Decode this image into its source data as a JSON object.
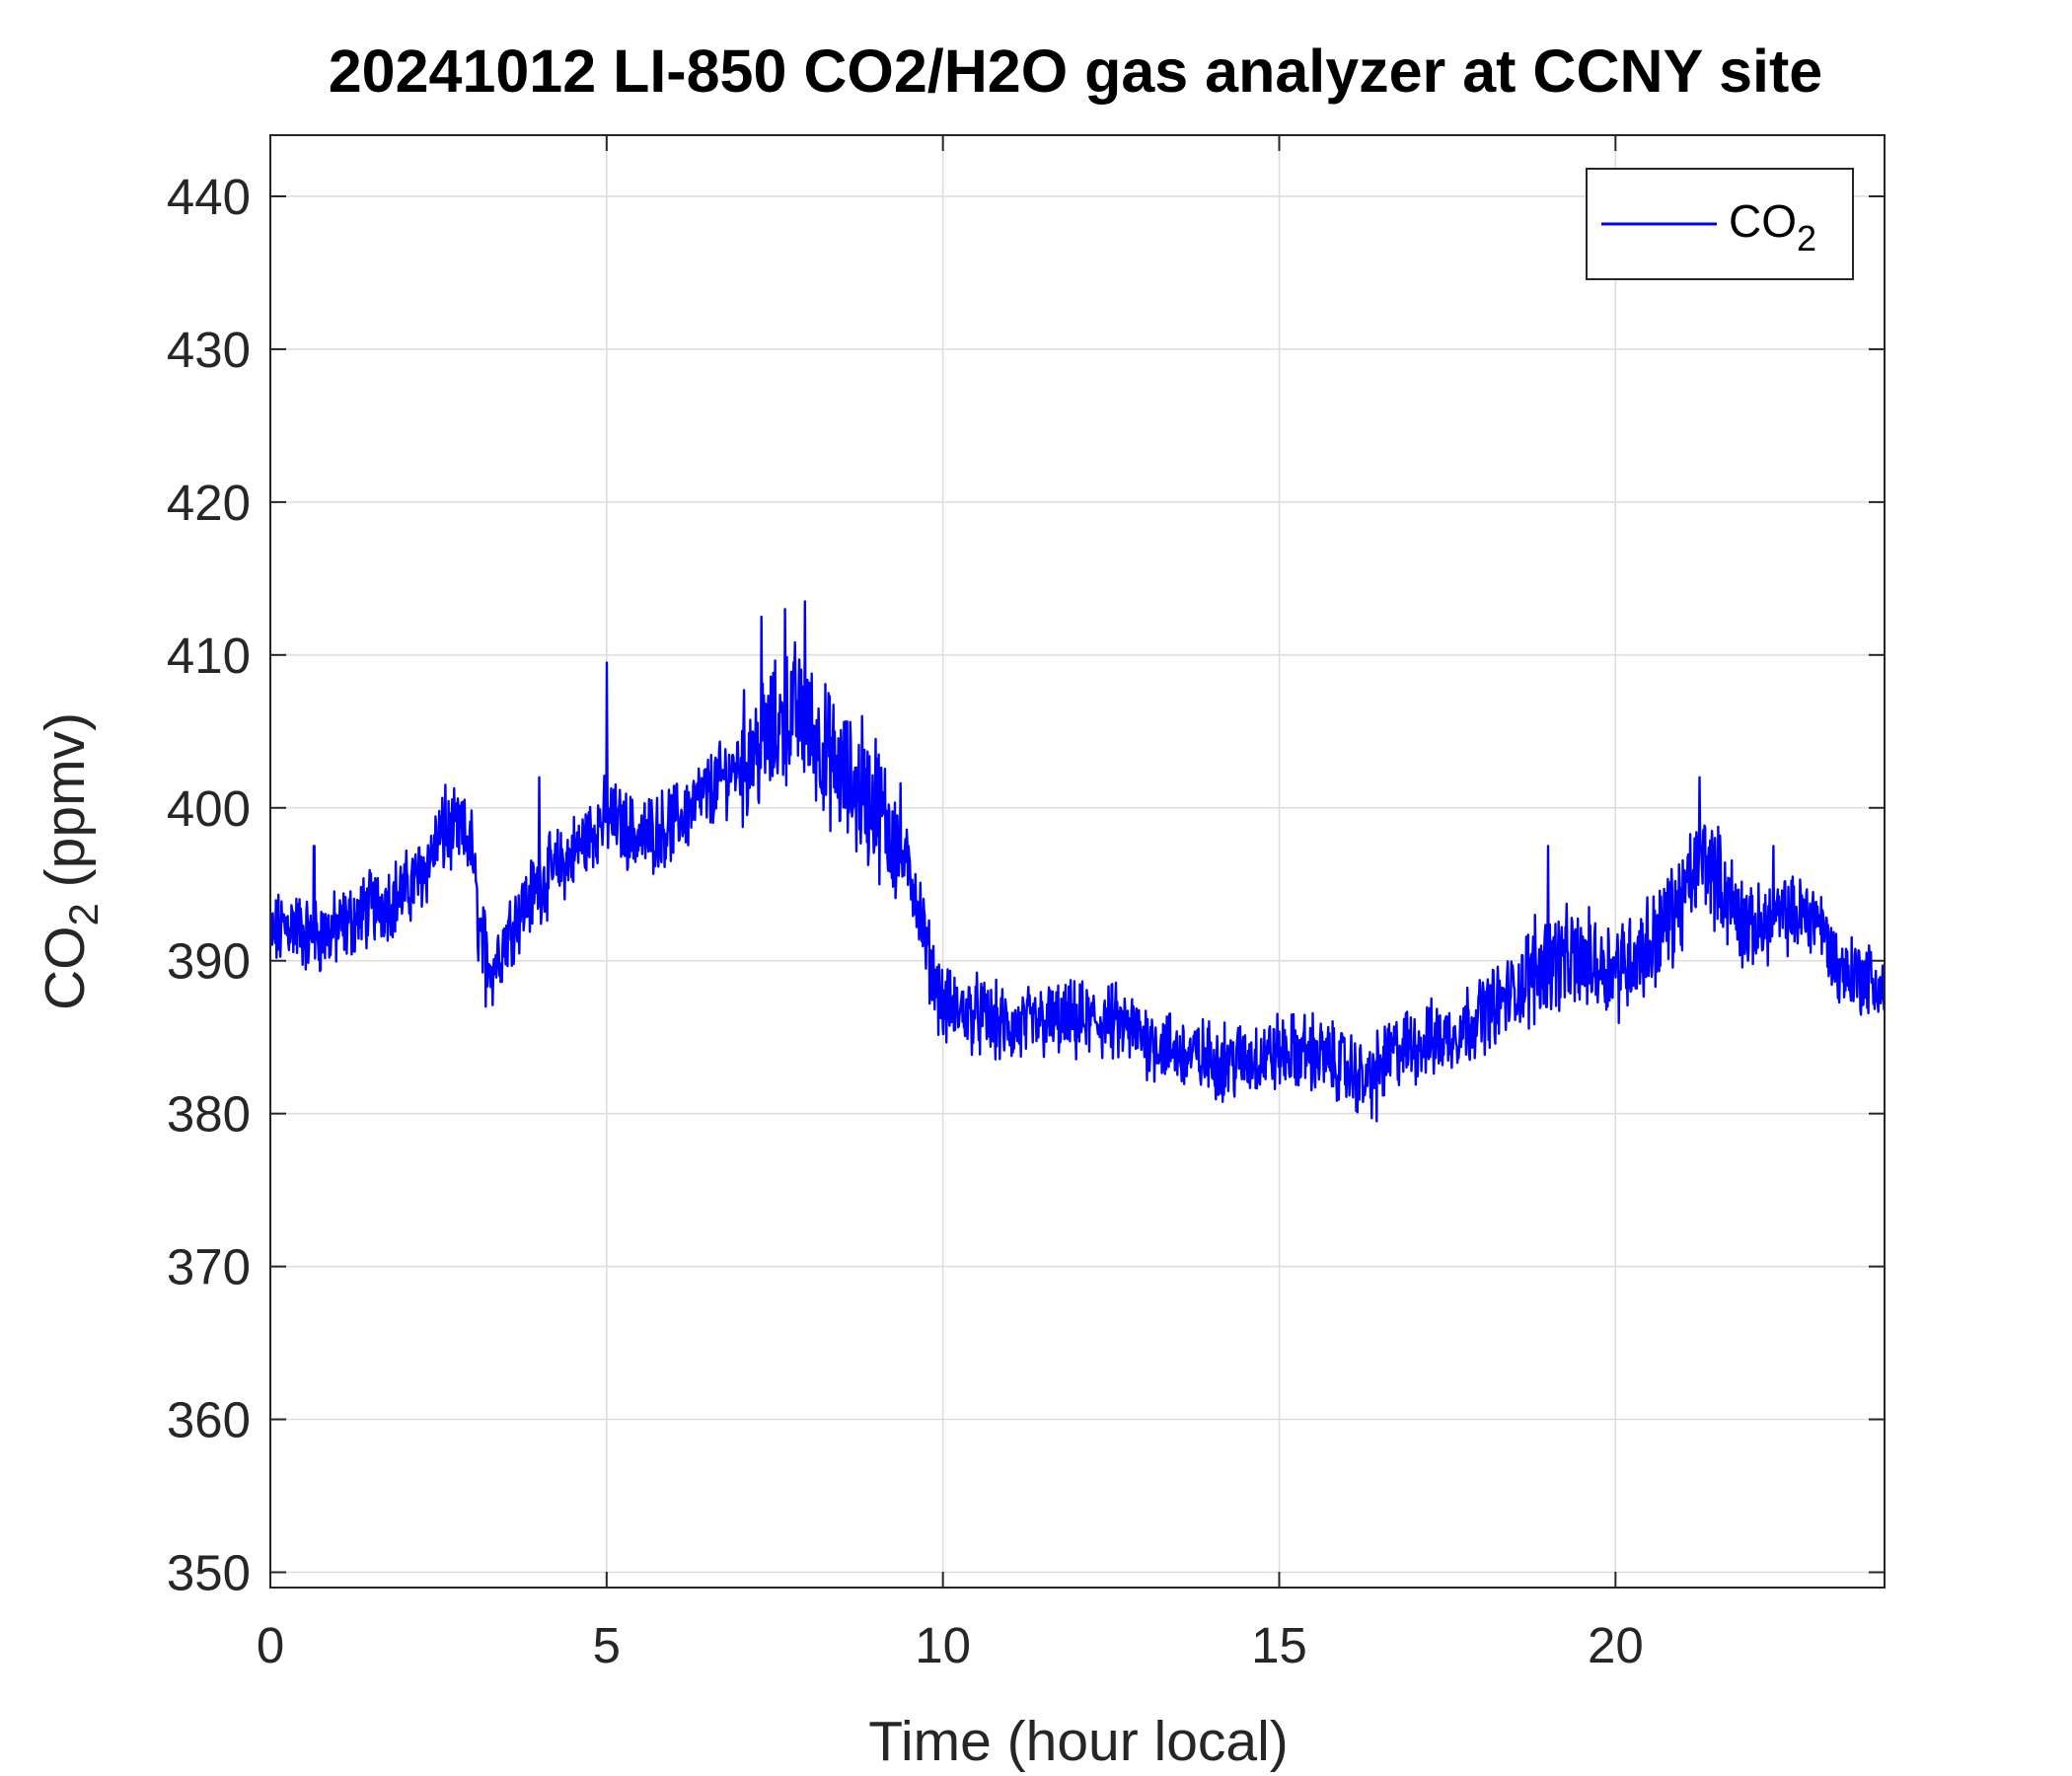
{
  "chart_data": {
    "type": "line",
    "title": "20241012 LI-850 CO2/H2O gas analyzer at CCNY site",
    "xlabel": {
      "main": "Time (hour local)"
    },
    "ylabel": {
      "base": "CO",
      "sub": "2",
      "rest": " (ppmv)"
    },
    "xlim": [
      0,
      24
    ],
    "ylim": [
      349,
      444
    ],
    "xticks": [
      0,
      5,
      10,
      15,
      20
    ],
    "yticks": [
      350,
      360,
      370,
      380,
      390,
      400,
      410,
      420,
      430,
      440
    ],
    "grid": true,
    "legend": {
      "position": "top-right"
    },
    "series": [
      {
        "name": {
          "base": "CO",
          "sub": "2"
        },
        "color": "#0000ff",
        "noise_ppmv": 2,
        "keypoints": [
          [
            0.0,
            391.5
          ],
          [
            0.3,
            392.5
          ],
          [
            0.6,
            391.5
          ],
          [
            1.0,
            392.0
          ],
          [
            1.5,
            393.5
          ],
          [
            2.0,
            394.5
          ],
          [
            2.3,
            396.0
          ],
          [
            2.5,
            398.0
          ],
          [
            2.8,
            398.5
          ],
          [
            3.0,
            397.5
          ],
          [
            3.1,
            392.0
          ],
          [
            3.3,
            389.5
          ],
          [
            3.6,
            392.5
          ],
          [
            4.0,
            395.0
          ],
          [
            4.5,
            397.0
          ],
          [
            5.0,
            399.5
          ],
          [
            5.5,
            398.0
          ],
          [
            6.0,
            399.0
          ],
          [
            6.5,
            401.0
          ],
          [
            7.0,
            403.0
          ],
          [
            7.5,
            405.0
          ],
          [
            7.8,
            406.5
          ],
          [
            8.2,
            404.0
          ],
          [
            8.5,
            402.0
          ],
          [
            9.0,
            400.0
          ],
          [
            9.3,
            398.0
          ],
          [
            9.6,
            394.5
          ],
          [
            9.8,
            390.0
          ],
          [
            10.0,
            387.0
          ],
          [
            10.5,
            386.5
          ],
          [
            11.0,
            385.5
          ],
          [
            11.5,
            386.0
          ],
          [
            12.0,
            386.0
          ],
          [
            12.5,
            386.0
          ],
          [
            13.0,
            385.0
          ],
          [
            13.5,
            384.0
          ],
          [
            14.0,
            383.5
          ],
          [
            14.5,
            383.5
          ],
          [
            15.0,
            384.0
          ],
          [
            15.5,
            384.0
          ],
          [
            16.0,
            383.0
          ],
          [
            16.3,
            382.0
          ],
          [
            16.7,
            384.0
          ],
          [
            17.0,
            384.5
          ],
          [
            17.5,
            385.0
          ],
          [
            18.0,
            386.5
          ],
          [
            18.5,
            388.0
          ],
          [
            19.0,
            390.0
          ],
          [
            19.5,
            390.0
          ],
          [
            20.0,
            389.5
          ],
          [
            20.5,
            391.0
          ],
          [
            21.0,
            394.0
          ],
          [
            21.3,
            397.0
          ],
          [
            21.7,
            394.0
          ],
          [
            22.0,
            392.0
          ],
          [
            22.5,
            393.0
          ],
          [
            23.0,
            393.0
          ],
          [
            23.3,
            389.5
          ],
          [
            23.7,
            389.0
          ],
          [
            24.0,
            388.0
          ]
        ],
        "spikes": [
          [
            5.0,
            409.5
          ],
          [
            7.3,
            412.5
          ],
          [
            7.65,
            413.0
          ],
          [
            7.95,
            413.5
          ],
          [
            8.8,
            406.0
          ],
          [
            9.0,
            404.5
          ],
          [
            2.6,
            401.5
          ],
          [
            4.0,
            402.0
          ],
          [
            21.25,
            402.0
          ],
          [
            19.0,
            397.5
          ],
          [
            0.65,
            397.5
          ],
          [
            3.2,
            387.0
          ],
          [
            16.45,
            379.5
          ],
          [
            22.35,
            397.5
          ],
          [
            18.8,
            393.0
          ]
        ]
      }
    ]
  }
}
